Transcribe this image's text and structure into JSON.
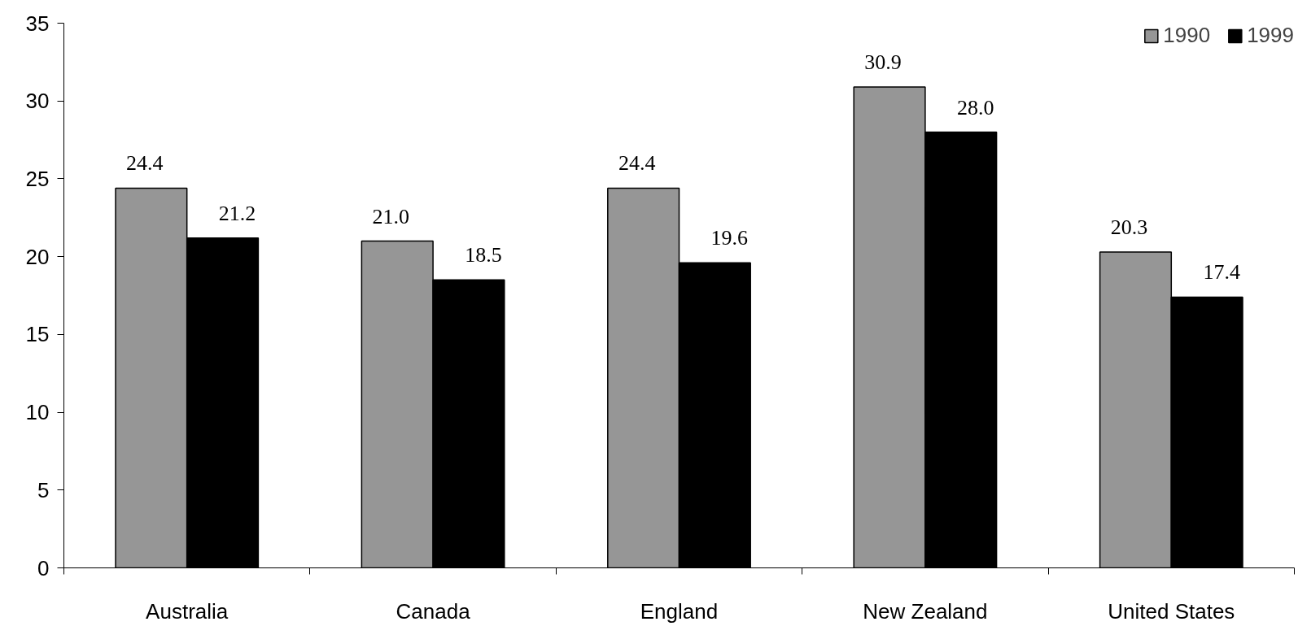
{
  "chart_data": {
    "type": "bar",
    "categories": [
      "Australia",
      "Canada",
      "England",
      "New Zealand",
      "United States"
    ],
    "series": [
      {
        "name": "1990",
        "color": "#969696",
        "values": [
          24.4,
          21.0,
          24.4,
          30.9,
          20.3
        ],
        "value_labels": [
          "24.4",
          "21.0",
          "24.4",
          "30.9",
          "20.3"
        ]
      },
      {
        "name": "1999",
        "color": "#000000",
        "values": [
          21.2,
          18.5,
          19.6,
          28.0,
          17.4
        ],
        "value_labels": [
          "21.2",
          "18.5",
          "19.6",
          "28.0",
          "17.4"
        ]
      }
    ],
    "ylim": [
      0,
      35
    ],
    "yticks": [
      0,
      5,
      10,
      15,
      20,
      25,
      30,
      35
    ],
    "grid": false,
    "legend": "top right"
  }
}
